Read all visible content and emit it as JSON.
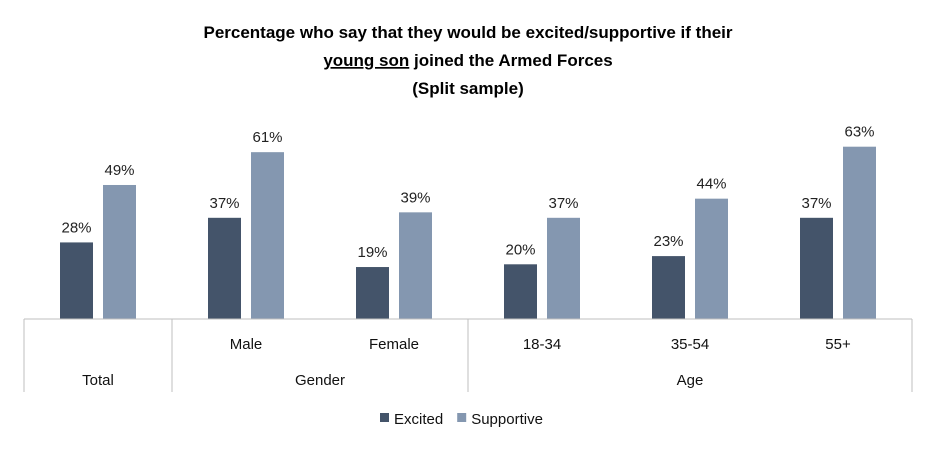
{
  "chart_data": {
    "type": "bar",
    "title_line1": "Percentage who say that they would be excited/supportive if their",
    "title_line2_underlined": "young son",
    "title_line2_rest": " joined the Armed Forces",
    "title_line3": "(Split sample)",
    "categories": [
      "Total",
      "Male",
      "Female",
      "18-34",
      "35-54",
      "55+"
    ],
    "groups": [
      {
        "label": "Total",
        "categories": [
          "Total"
        ]
      },
      {
        "label": "Gender",
        "categories": [
          "Male",
          "Female"
        ]
      },
      {
        "label": "Age",
        "categories": [
          "18-34",
          "35-54",
          "55+"
        ]
      }
    ],
    "series": [
      {
        "name": "Excited",
        "color": "#44546a",
        "values": [
          28,
          37,
          19,
          20,
          23,
          37
        ]
      },
      {
        "name": "Supportive",
        "color": "#8497b0",
        "values": [
          49,
          61,
          39,
          37,
          44,
          63
        ]
      }
    ],
    "value_suffix": "%",
    "ylim": [
      0,
      70
    ],
    "grid": false,
    "legend_position": "bottom"
  }
}
